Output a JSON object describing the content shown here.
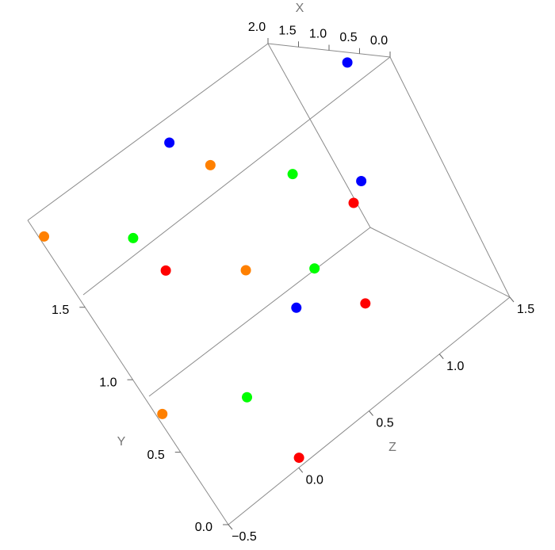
{
  "chart_data": {
    "type": "scatter3d",
    "xlabel": "X",
    "ylabel": "Y",
    "zlabel": "Z",
    "xlim": [
      0,
      2
    ],
    "ylim": [
      0,
      2.1
    ],
    "zlim": [
      -0.5,
      1.5
    ],
    "xticks": [
      {
        "value": 0,
        "label": "0.0"
      },
      0.5,
      {
        "value": 1,
        "label": "1.0"
      },
      1.5,
      {
        "value": 2,
        "label": "2.0"
      }
    ],
    "yticks": [
      {
        "value": 0,
        "label": "0.0"
      },
      0.5,
      {
        "value": 1,
        "label": "1.0"
      },
      1.5
    ],
    "zticks": [
      {
        "value": -0.5,
        "label": "−0.5"
      },
      {
        "value": 0,
        "label": "0.0"
      },
      0.5,
      {
        "value": 1,
        "label": "1.0"
      },
      1.5
    ],
    "series": [
      {
        "color": "#0000ff",
        "x": [
          1,
          1.5,
          1,
          1
        ],
        "y": [
          1.9,
          2.08,
          1.31,
          0.98
        ],
        "z": [
          1.36,
          0.36,
          1.03,
          0.29
        ]
      },
      {
        "color": "#ff8000",
        "x": [
          1,
          2,
          1,
          2
        ],
        "y": [
          1.95,
          2.0,
          1.34,
          0.75
        ],
        "z": [
          0.35,
          -0.43,
          0.17,
          -0.45
        ]
      },
      {
        "color": "#00ff00",
        "x": [
          1,
          1,
          1,
          1
        ],
        "y": [
          1.6,
          1.91,
          1.09,
          0.76
        ],
        "z": [
          0.72,
          -0.27,
          0.51,
          -0.25
        ]
      },
      {
        "color": "#ff0000",
        "x": [
          1,
          1,
          1,
          1
        ],
        "y": [
          1.24,
          1.64,
          0.74,
          0.29
        ],
        "z": [
          0.92,
          -0.22,
          0.64,
          -0.2
        ]
      }
    ]
  }
}
